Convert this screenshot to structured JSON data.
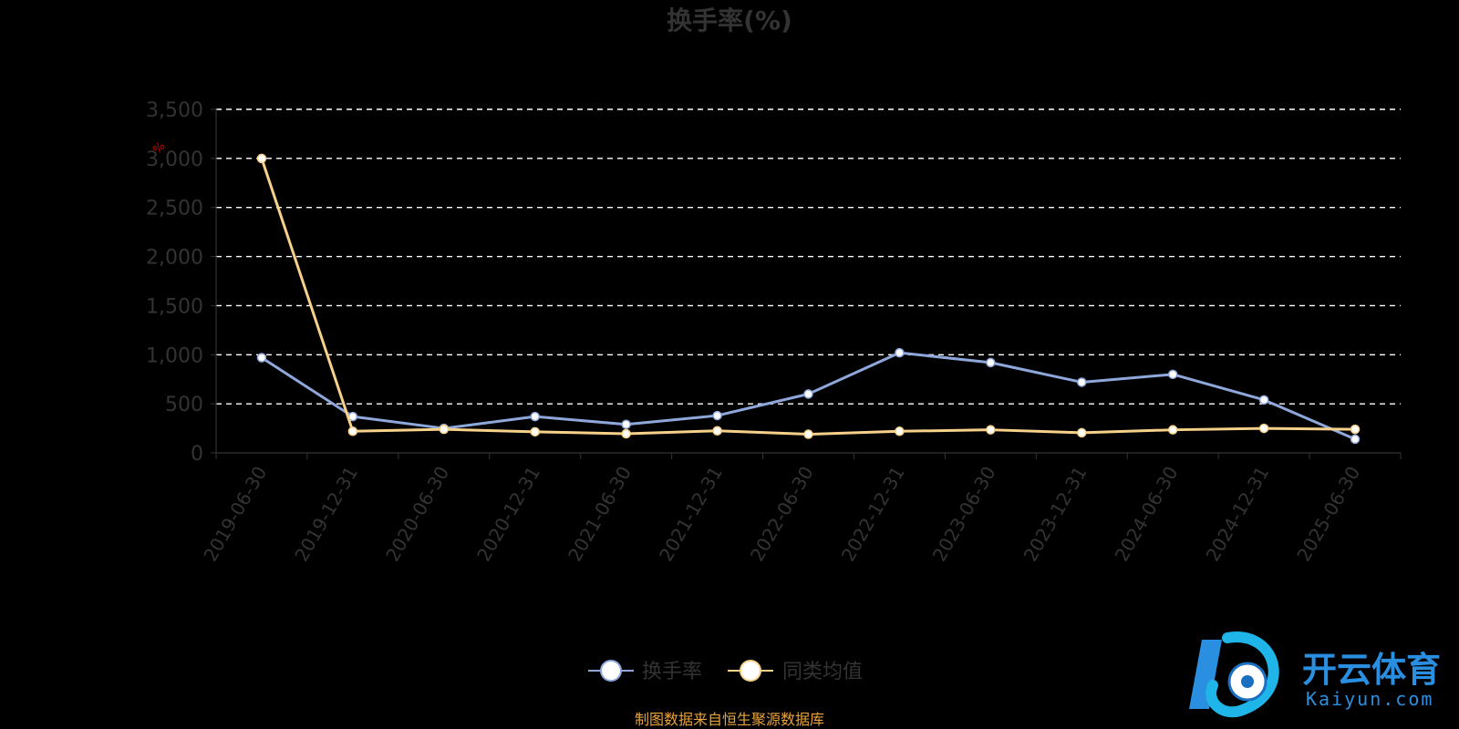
{
  "chart_data": {
    "type": "line",
    "title": "换手率(%)",
    "unit_label": "%",
    "categories": [
      "2019-06-30",
      "2019-12-31",
      "2020-06-30",
      "2020-12-31",
      "2021-06-30",
      "2021-12-31",
      "2022-06-30",
      "2022-12-31",
      "2023-06-30",
      "2023-12-31",
      "2024-06-30",
      "2024-12-31",
      "2025-06-30"
    ],
    "series": [
      {
        "name": "换手率",
        "color": "#8fa8dc",
        "values": [
          970,
          370,
          250,
          370,
          290,
          380,
          600,
          1020,
          920,
          720,
          800,
          540,
          140
        ]
      },
      {
        "name": "同类均值",
        "color": "#f7d08a",
        "values": [
          3000,
          220,
          240,
          215,
          195,
          225,
          190,
          220,
          235,
          205,
          235,
          250,
          240
        ]
      }
    ],
    "yticks": [
      "0",
      "500",
      "1,000",
      "1,500",
      "2,000",
      "2,500",
      "3,000",
      "3,500"
    ],
    "ylim": [
      0,
      3500
    ],
    "grid": true,
    "grid_style": "dashed",
    "legend_position": "bottom-center"
  },
  "source_text": "制图数据来自恒生聚源数据库",
  "watermark": {
    "brand": "开云体育",
    "site": "Kaiyun.com"
  }
}
